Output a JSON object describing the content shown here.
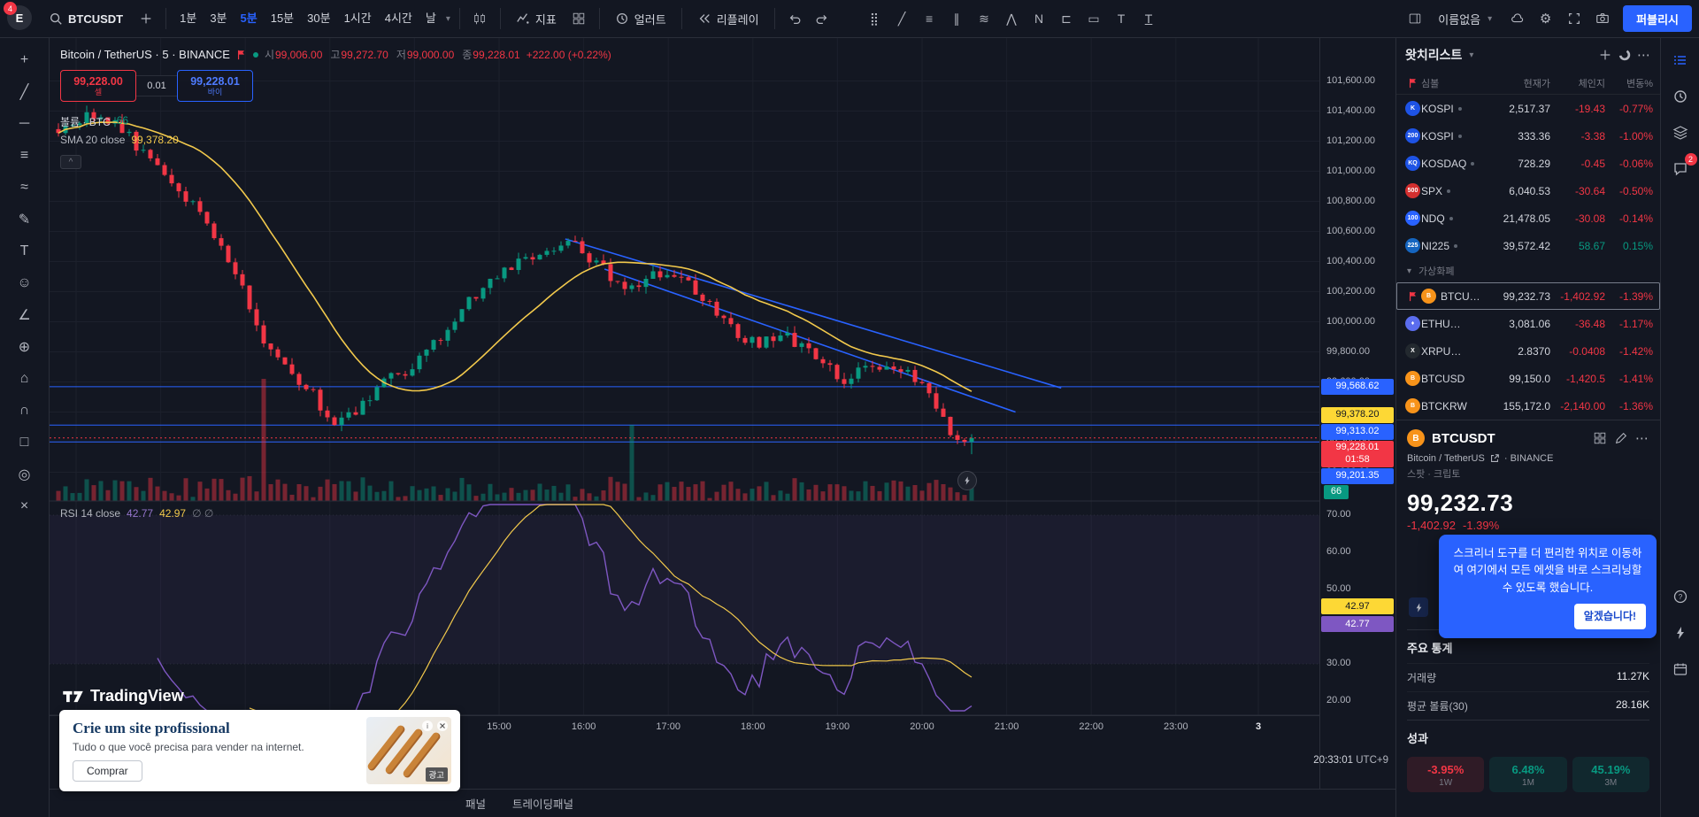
{
  "colors": {
    "bg": "#131722",
    "border": "#2a2e39",
    "text": "#d1d4dc",
    "muted": "#787b86",
    "accent": "#2962ff",
    "up": "#089981",
    "down": "#f23645",
    "sma": "#f2c94c",
    "sma_chip": "#fdd835",
    "rsi": "#7e57c2"
  },
  "topbar": {
    "symbol": "BTCUSDT",
    "timeframes": [
      "1분",
      "3분",
      "5분",
      "15분",
      "30분",
      "1시간",
      "4시간",
      "날"
    ],
    "active_timeframe": "5분",
    "indicators_label": "지표",
    "alert_label": "얼러트",
    "replay_label": "리플레이",
    "layout_name": "이름없음",
    "publish_label": "퍼블리시",
    "avatar_letter": "E",
    "avatar_badge": "4",
    "draw_tools": [
      {
        "name": "grip-icon",
        "glyph": "⣿"
      },
      {
        "name": "trend-line-icon",
        "glyph": "╱"
      },
      {
        "name": "horizontal-lines-icon",
        "glyph": "≡"
      },
      {
        "name": "parallel-channel-icon",
        "glyph": "∥"
      },
      {
        "name": "curve-icon",
        "glyph": "≋"
      },
      {
        "name": "xabcd-pattern-icon",
        "glyph": "⋀"
      },
      {
        "name": "elliott-wave-icon",
        "glyph": "N"
      },
      {
        "name": "forecast-icon",
        "glyph": "⊏"
      },
      {
        "name": "rectangle-icon",
        "glyph": "▭"
      },
      {
        "name": "text-icon",
        "glyph": "T"
      },
      {
        "name": "anchored-text-icon",
        "glyph": "T"
      }
    ]
  },
  "left_toolbar": [
    {
      "name": "crosshair-tool",
      "glyph": "+"
    },
    {
      "name": "trend-line-tool",
      "glyph": "╱"
    },
    {
      "name": "horizontal-line-tool",
      "glyph": "─"
    },
    {
      "name": "fib-retracement-tool",
      "glyph": "≡"
    },
    {
      "name": "pattern-tool",
      "glyph": "≈"
    },
    {
      "name": "brush-tool",
      "glyph": "✎"
    },
    {
      "name": "text-tool",
      "glyph": "T"
    },
    {
      "name": "emoji-tool",
      "glyph": "☺"
    },
    {
      "name": "measure-tool",
      "glyph": "∠"
    },
    {
      "name": "zoom-in-tool",
      "glyph": "⊕"
    },
    {
      "name": "home-tool",
      "glyph": "⌂"
    },
    {
      "name": "magnet-tool",
      "glyph": "∩"
    },
    {
      "name": "lock-tool",
      "glyph": "□"
    },
    {
      "name": "hide-drawings-tool",
      "glyph": "◎"
    },
    {
      "name": "remove-drawings-tool",
      "glyph": "×"
    }
  ],
  "legend": {
    "title": "Bitcoin / TetherUS · 5 · BINANCE",
    "ohlc": [
      {
        "label": "시",
        "value": "99,006.00"
      },
      {
        "label": "고",
        "value": "99,272.70"
      },
      {
        "label": "저",
        "value": "99,000.00"
      },
      {
        "label": "종",
        "value": "99,228.01"
      }
    ],
    "change": "+222.00 (+0.22%)",
    "sell_price": "99,228.00",
    "sell_label": "셀",
    "spread": "0.01",
    "buy_price": "99,228.01",
    "buy_label": "바이",
    "volume_label": "볼륨 · BTC",
    "volume_value": "66",
    "sma_label": "SMA 20 close",
    "sma_value": "99,378.20",
    "rsi_label": "RSI 14 close",
    "rsi_value_1": "42.77",
    "rsi_value_2": "42.97",
    "rsi_extra": "∅ ∅",
    "collapse_glyph": "^"
  },
  "chart_data": {
    "type": "candlestick",
    "title": "BTCUSDT 5 BINANCE",
    "symbol": "BTCUSDT",
    "exchange": "BINANCE",
    "interval": "5",
    "ylim": [
      98800,
      101650
    ],
    "y_tick_prices": [
      101600,
      101400,
      101200,
      101000,
      100800,
      100600,
      100400,
      100200,
      100000,
      99800,
      99600,
      99400,
      99200,
      99000
    ],
    "x_ticks": [
      "15:00",
      "16:00",
      "17:00",
      "18:00",
      "19:00",
      "20:00",
      "21:00",
      "22:00",
      "23:00"
    ],
    "x_date_tick": "3",
    "candle_count": 130,
    "price_path": [
      [
        0.0,
        101280
      ],
      [
        0.03,
        101350
      ],
      [
        0.065,
        101330
      ],
      [
        0.095,
        101110
      ],
      [
        0.13,
        100910
      ],
      [
        0.16,
        100680
      ],
      [
        0.19,
        100380
      ],
      [
        0.22,
        99930
      ],
      [
        0.249,
        99710
      ],
      [
        0.279,
        99510
      ],
      [
        0.302,
        99300
      ],
      [
        0.332,
        99450
      ],
      [
        0.362,
        99610
      ],
      [
        0.391,
        99710
      ],
      [
        0.421,
        99910
      ],
      [
        0.451,
        100150
      ],
      [
        0.48,
        100310
      ],
      [
        0.51,
        100410
      ],
      [
        0.54,
        100510
      ],
      [
        0.557,
        100550
      ],
      [
        0.581,
        100410
      ],
      [
        0.605,
        100310
      ],
      [
        0.623,
        100180
      ],
      [
        0.641,
        100280
      ],
      [
        0.664,
        100350
      ],
      [
        0.688,
        100250
      ],
      [
        0.712,
        100150
      ],
      [
        0.73,
        100010
      ],
      [
        0.747,
        99910
      ],
      [
        0.771,
        99850
      ],
      [
        0.795,
        99910
      ],
      [
        0.818,
        99810
      ],
      [
        0.842,
        99710
      ],
      [
        0.86,
        99610
      ],
      [
        0.878,
        99710
      ],
      [
        0.895,
        99650
      ],
      [
        0.913,
        99710
      ],
      [
        0.937,
        99610
      ],
      [
        0.955,
        99510
      ],
      [
        0.973,
        99280
      ],
      [
        0.985,
        99170
      ],
      [
        1.0,
        99228.01
      ]
    ],
    "levels": [
      {
        "price": 99568.62,
        "label": "99,568.62"
      },
      {
        "price": 99313.02,
        "label": "99,313.02"
      },
      {
        "price": 99201.35,
        "label": "99,201.35"
      }
    ],
    "last_price": {
      "price": 99228.01,
      "label": "99,228.01",
      "countdown": "01:58"
    },
    "sma_chip": {
      "price": 99378.2,
      "label": "99,378.20"
    },
    "volume_chip": "66",
    "trendlines": [
      {
        "t1": 0.557,
        "p1": 100550,
        "t2": 1.1,
        "p2": 99560
      },
      {
        "t1": 0.6,
        "p1": 100350,
        "t2": 1.05,
        "p2": 99400
      }
    ],
    "volume_spikes": [
      {
        "index": 29,
        "height": 138
      },
      {
        "index": 81,
        "height": 86
      }
    ],
    "rsi_ticks": [
      70,
      60,
      50,
      40,
      30,
      20
    ],
    "rsi_chips": [
      {
        "label": "42.97",
        "color": "yellow"
      },
      {
        "label": "42.77",
        "color": "purple"
      }
    ]
  },
  "watchlist": {
    "title": "왓치리스트",
    "columns": [
      "심볼",
      "현재가",
      "체인지",
      "변동%"
    ],
    "rows": [
      {
        "symbol": "KOSPI",
        "icon_text": "K",
        "icon_bg": "#1e53e5",
        "price": "2,517.37",
        "change": "-19.43",
        "pct": "-0.77%",
        "dir": "down",
        "dot": true
      },
      {
        "symbol": "KOSPI",
        "icon_text": "200",
        "icon_bg": "#1e53e5",
        "price": "333.36",
        "change": "-3.38",
        "pct": "-1.00%",
        "dir": "down",
        "dot": true
      },
      {
        "symbol": "KOSDAQ",
        "icon_text": "KQ",
        "icon_bg": "#1e53e5",
        "price": "728.29",
        "change": "-0.45",
        "pct": "-0.06%",
        "dir": "down",
        "dot": true
      },
      {
        "symbol": "SPX",
        "icon_text": "500",
        "icon_bg": "#d32f2f",
        "price": "6,040.53",
        "change": "-30.64",
        "pct": "-0.50%",
        "dir": "down",
        "dot": true
      },
      {
        "symbol": "NDQ",
        "icon_text": "100",
        "icon_bg": "#2962ff",
        "price": "21,478.05",
        "change": "-30.08",
        "pct": "-0.14%",
        "dir": "down",
        "dot": true
      },
      {
        "symbol": "NI225",
        "icon_text": "225",
        "icon_bg": "#1565c0",
        "price": "39,572.42",
        "change": "58.67",
        "pct": "0.15%",
        "dir": "up",
        "dot": true
      }
    ],
    "crypto_section": "가상화폐",
    "crypto_rows": [
      {
        "symbol": "BTCUSDT",
        "icon_text": "B",
        "icon_bg": "#f7931a",
        "price": "99,232.73",
        "change": "-1,402.92",
        "pct": "-1.39%",
        "dir": "down",
        "selected": true,
        "flagged": true
      },
      {
        "symbol": "ETHUSDT",
        "icon_text": "♦",
        "icon_bg": "#5b6dee",
        "price": "3,081.06",
        "change": "-36.48",
        "pct": "-1.17%",
        "dir": "down"
      },
      {
        "symbol": "XRPUSDT",
        "icon_text": "X",
        "icon_bg": "#23292f",
        "price": "2.8370",
        "change": "-0.0408",
        "pct": "-1.42%",
        "dir": "down"
      },
      {
        "symbol": "BTCUSD",
        "icon_text": "B",
        "icon_bg": "#f7931a",
        "price": "99,150.0",
        "change": "-1,420.5",
        "pct": "-1.41%",
        "dir": "down"
      },
      {
        "symbol": "BTCKRW",
        "icon_text": "B",
        "icon_bg": "#f7931a",
        "price": "155,172.0",
        "change": "-2,140.00",
        "pct": "-1.36%",
        "dir": "down"
      }
    ]
  },
  "detail": {
    "symbol": "BTCUSDT",
    "description": "Bitcoin / TetherUS",
    "exchange": "· BINANCE",
    "market_type": "스팟 · 크립토",
    "price": "99,232.73",
    "change": "-1,402.92",
    "change_pct": "-1.39%",
    "tooltip_text": "스크리너 도구를 더 편리한 위치로 이동하여 여기에서 모든 에셋을 바로 스크리닝할 수 있도록 했습니다.",
    "tooltip_button": "알겠습니다!",
    "stats_title": "주요 통계",
    "stats": [
      {
        "label": "거래량",
        "value": "11.27K"
      },
      {
        "label": "평균 볼륨(30)",
        "value": "28.16K"
      }
    ],
    "perf_title": "성과",
    "performance": [
      {
        "value": "-3.95%",
        "period": "1W",
        "dir": "down"
      },
      {
        "value": "6.48%",
        "period": "1M",
        "dir": "up"
      },
      {
        "value": "45.19%",
        "period": "3M",
        "dir": "up"
      }
    ]
  },
  "ad": {
    "title": "Crie um site profissional",
    "body": "Tudo o que você precisa para vender na internet.",
    "cta": "Comprar",
    "tag": "광고"
  },
  "footer": {
    "logo": "TradingView",
    "tabs": [
      "패널",
      "트레이딩패널"
    ],
    "clock": "20:33:01",
    "timezone": "UTC+9"
  },
  "right_strip": {
    "top": [
      {
        "name": "watchlist-icon",
        "icon": "list",
        "active": true
      },
      {
        "name": "alerts-icon",
        "icon": "clock"
      },
      {
        "name": "layers-icon",
        "icon": "layers"
      },
      {
        "name": "chat-icon",
        "icon": "chat",
        "badge": "2"
      }
    ],
    "bottom": [
      {
        "name": "help-icon",
        "icon": "help"
      },
      {
        "name": "bolt-icon",
        "icon": "bolt"
      },
      {
        "name": "calendar-icon",
        "icon": "calendar"
      }
    ]
  }
}
